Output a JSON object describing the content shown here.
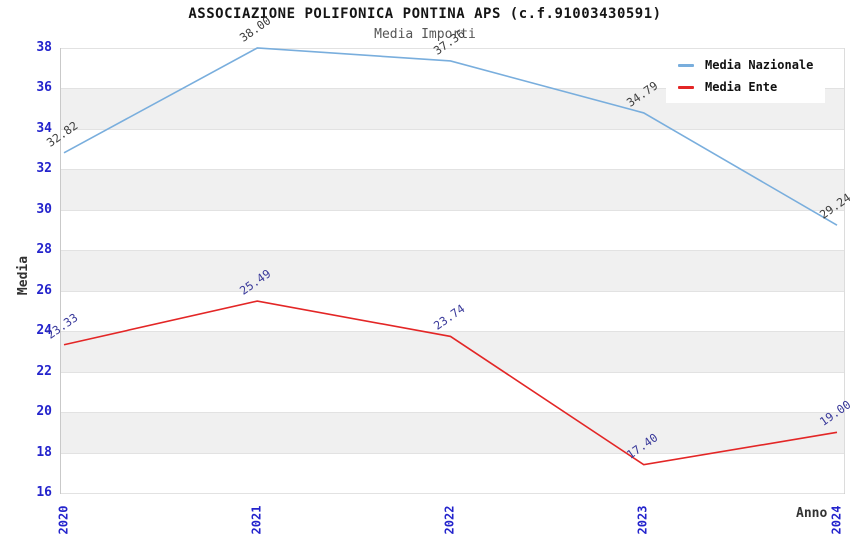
{
  "chart_data": {
    "type": "line",
    "title": "ASSOCIAZIONE POLIFONICA PONTINA APS (c.f.91003430591)",
    "subtitle": "Media Importi",
    "xlabel": "Anno",
    "ylabel": "Media",
    "categories": [
      "2020",
      "2021",
      "2022",
      "2023",
      "2024"
    ],
    "series": [
      {
        "name": "Media Nazionale",
        "color": "#79aedd",
        "label_color": "#3d3d3d",
        "values": [
          32.82,
          38.0,
          37.36,
          34.79,
          29.24
        ]
      },
      {
        "name": "Media Ente",
        "color": "#e32626",
        "label_color": "#39399a",
        "values": [
          23.33,
          25.49,
          23.74,
          17.4,
          19.0
        ]
      }
    ],
    "ylim": [
      16,
      38
    ],
    "ytick_step": 2,
    "grid": true,
    "band_colors": [
      "#ffffff",
      "#f0f0f0"
    ],
    "tick_color": "#2323cc",
    "legend_position": "top-right"
  }
}
